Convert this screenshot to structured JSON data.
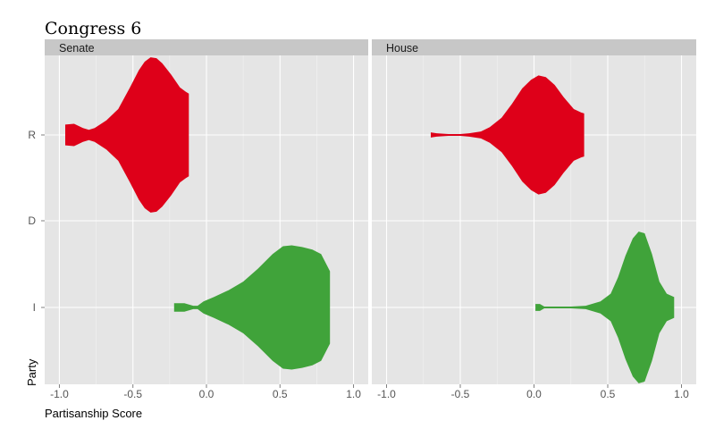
{
  "chart_data": {
    "type": "violin",
    "title": "Congress 6",
    "xlabel": "Partisanship Score",
    "ylabel": "Party",
    "xlim": [
      -1.1,
      1.1
    ],
    "x_ticks": [
      "-1.0",
      "-0.5",
      "0.0",
      "0.5",
      "1.0"
    ],
    "y_categories": [
      "R",
      "D",
      "I"
    ],
    "grid": true,
    "panels": [
      {
        "name": "Senate",
        "violins": [
          {
            "category": "R",
            "color": "#DE0019",
            "profile": [
              [
                -0.96,
                0.12
              ],
              [
                -0.9,
                0.13
              ],
              [
                -0.84,
                0.08
              ],
              [
                -0.8,
                0.06
              ],
              [
                -0.76,
                0.08
              ],
              [
                -0.68,
                0.17
              ],
              [
                -0.6,
                0.3
              ],
              [
                -0.52,
                0.55
              ],
              [
                -0.46,
                0.75
              ],
              [
                -0.42,
                0.85
              ],
              [
                -0.38,
                0.9
              ],
              [
                -0.34,
                0.89
              ],
              [
                -0.3,
                0.83
              ],
              [
                -0.24,
                0.7
              ],
              [
                -0.18,
                0.55
              ],
              [
                -0.14,
                0.5
              ],
              [
                -0.12,
                0.48
              ]
            ]
          },
          {
            "category": "I",
            "color": "#40A33A",
            "profile": [
              [
                -0.22,
                0.05
              ],
              [
                -0.15,
                0.05
              ],
              [
                -0.09,
                0.02
              ],
              [
                -0.06,
                0.02
              ],
              [
                -0.02,
                0.07
              ],
              [
                0.05,
                0.12
              ],
              [
                0.15,
                0.2
              ],
              [
                0.25,
                0.3
              ],
              [
                0.35,
                0.45
              ],
              [
                0.45,
                0.62
              ],
              [
                0.52,
                0.71
              ],
              [
                0.58,
                0.72
              ],
              [
                0.65,
                0.7
              ],
              [
                0.72,
                0.67
              ],
              [
                0.78,
                0.62
              ],
              [
                0.84,
                0.42
              ]
            ]
          }
        ]
      },
      {
        "name": "House",
        "violins": [
          {
            "category": "R",
            "color": "#DE0019",
            "profile": [
              [
                -0.7,
                0.03
              ],
              [
                -0.66,
                0.02
              ],
              [
                -0.58,
                0.01
              ],
              [
                -0.5,
                0.01
              ],
              [
                -0.44,
                0.02
              ],
              [
                -0.36,
                0.04
              ],
              [
                -0.3,
                0.09
              ],
              [
                -0.22,
                0.2
              ],
              [
                -0.15,
                0.36
              ],
              [
                -0.08,
                0.54
              ],
              [
                -0.02,
                0.64
              ],
              [
                0.03,
                0.69
              ],
              [
                0.08,
                0.67
              ],
              [
                0.14,
                0.58
              ],
              [
                0.2,
                0.44
              ],
              [
                0.27,
                0.3
              ],
              [
                0.32,
                0.26
              ],
              [
                0.34,
                0.25
              ]
            ]
          },
          {
            "category": "I",
            "color": "#40A33A",
            "profile": [
              [
                0.01,
                0.04
              ],
              [
                0.04,
                0.04
              ],
              [
                0.07,
                0.01
              ],
              [
                0.15,
                0.01
              ],
              [
                0.25,
                0.01
              ],
              [
                0.35,
                0.02
              ],
              [
                0.45,
                0.07
              ],
              [
                0.52,
                0.16
              ],
              [
                0.57,
                0.35
              ],
              [
                0.62,
                0.6
              ],
              [
                0.67,
                0.8
              ],
              [
                0.71,
                0.88
              ],
              [
                0.75,
                0.86
              ],
              [
                0.8,
                0.62
              ],
              [
                0.85,
                0.3
              ],
              [
                0.9,
                0.16
              ],
              [
                0.95,
                0.12
              ]
            ]
          }
        ]
      }
    ]
  }
}
